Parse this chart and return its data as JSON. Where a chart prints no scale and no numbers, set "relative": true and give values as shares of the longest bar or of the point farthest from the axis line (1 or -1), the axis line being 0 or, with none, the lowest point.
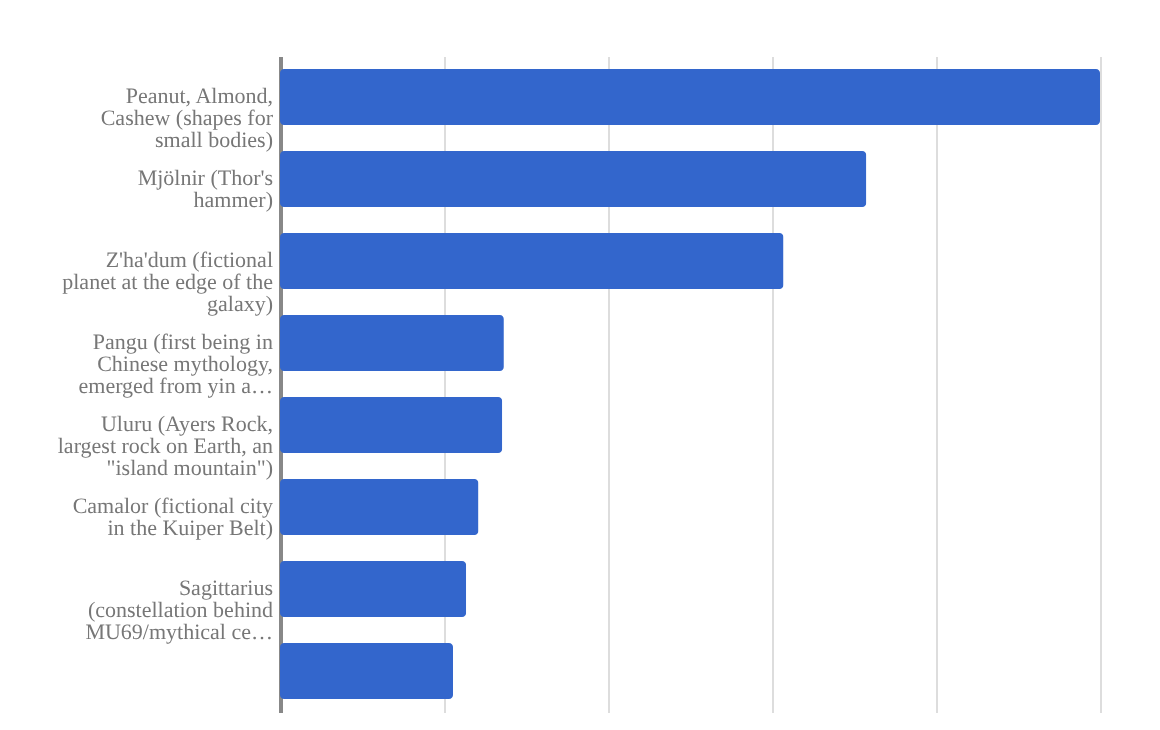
{
  "chart_data": {
    "type": "bar",
    "orientation": "horizontal",
    "relative": true,
    "grid": "x",
    "categories": [
      "Peanut, Almond, Cashew (shapes for small bodies)",
      "Mjölnir (Thor's hammer)",
      "Z'ha'dum (fictional planet at the edge of the galaxy)",
      "Pangu (first being in Chinese mythology, emerged from yin a…",
      "Uluru (Ayers Rock, largest rock on Earth, an \"island mountain\")",
      "Camalor (fictional city in the Kuiper Belt)",
      "Sagittarius (constellation behind MU69/mythical ce…",
      null
    ],
    "values": [
      1,
      0.715,
      0.614,
      0.273,
      0.271,
      0.242,
      0.227,
      0.211
    ],
    "color": "#3366cc"
  }
}
